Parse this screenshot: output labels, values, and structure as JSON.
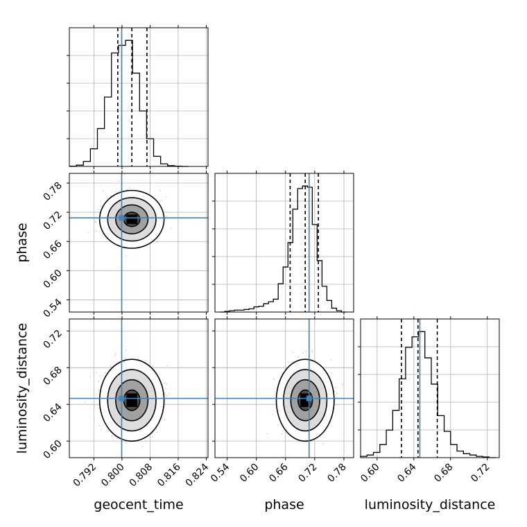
{
  "chart_data": {
    "type": "corner",
    "parameters": [
      "geocent_time",
      "phase",
      "luminosity_distance"
    ],
    "axis_labels": {
      "geocent_time": "geocent_time",
      "phase": "phase",
      "luminosity_distance": "luminosity_distance"
    },
    "ranges": {
      "geocent_time": [
        0.785,
        0.8245
      ],
      "phase": [
        0.515,
        0.8
      ],
      "luminosity_distance": [
        0.582,
        0.733
      ]
    },
    "ticks": {
      "geocent_time": [
        0.792,
        0.8,
        0.808,
        0.816,
        0.824
      ],
      "phase": [
        0.54,
        0.6,
        0.66,
        0.72,
        0.78
      ],
      "luminosity_distance": [
        0.6,
        0.64,
        0.68,
        0.72
      ]
    },
    "tick_labels": {
      "geocent_time": [
        "0.792",
        "0.800",
        "0.808",
        "0.816",
        "0.824"
      ],
      "phase": [
        "0.54",
        "0.60",
        "0.66",
        "0.72",
        "0.78"
      ],
      "luminosity_distance": [
        "0.60",
        "0.64",
        "0.68",
        "0.72"
      ]
    },
    "truths": {
      "geocent_time": 0.7999,
      "phase": 0.7085,
      "luminosity_distance": 0.6465
    },
    "truth_color": "#4682b4",
    "line_color": "#000000",
    "grid": true,
    "histograms": {
      "geocent_time": {
        "edges": [
          0.785,
          0.787,
          0.789,
          0.791,
          0.793,
          0.795,
          0.797,
          0.799,
          0.801,
          0.803,
          0.805,
          0.807,
          0.809,
          0.811,
          0.813,
          0.815,
          0.817,
          0.819
        ],
        "counts": [
          0.002,
          0.01,
          0.04,
          0.14,
          0.3,
          0.55,
          0.9,
          0.96,
          1.0,
          0.74,
          0.44,
          0.22,
          0.08,
          0.02,
          0.006,
          0.002,
          0.0
        ],
        "quantiles": [
          0.7988,
          0.8028,
          0.8071
        ]
      },
      "phase": {
        "edges": [
          0.525,
          0.535,
          0.545,
          0.555,
          0.565,
          0.575,
          0.585,
          0.595,
          0.605,
          0.615,
          0.625,
          0.635,
          0.645,
          0.655,
          0.665,
          0.675,
          0.685,
          0.695,
          0.705,
          0.715,
          0.725,
          0.735,
          0.745,
          0.755,
          0.765,
          0.775,
          0.785
        ],
        "counts": [
          0.0,
          0.005,
          0.01,
          0.015,
          0.015,
          0.02,
          0.025,
          0.04,
          0.045,
          0.065,
          0.08,
          0.1,
          0.22,
          0.35,
          0.54,
          0.8,
          0.96,
          0.98,
          0.97,
          0.68,
          0.4,
          0.2,
          0.09,
          0.03,
          0.01,
          0.0
        ],
        "quantiles": [
          0.6695,
          0.7005,
          0.7275
        ]
      },
      "luminosity_distance": {
        "edges": [
          0.582,
          0.589,
          0.596,
          0.603,
          0.61,
          0.617,
          0.624,
          0.631,
          0.638,
          0.645,
          0.652,
          0.659,
          0.666,
          0.673,
          0.68,
          0.687,
          0.694,
          0.701,
          0.708,
          0.715,
          0.722,
          0.729
        ],
        "counts": [
          0.01,
          0.02,
          0.04,
          0.1,
          0.21,
          0.36,
          0.6,
          0.84,
          0.92,
          0.96,
          0.76,
          0.56,
          0.32,
          0.2,
          0.1,
          0.05,
          0.03,
          0.02,
          0.01,
          0.005,
          0.0
        ],
        "quantiles": [
          0.6265,
          0.6445,
          0.6655
        ]
      }
    },
    "joint_2d": [
      {
        "x": "geocent_time",
        "y": "phase",
        "center": [
          0.8028,
          0.7055
        ],
        "sigma": [
          0.0034,
          0.022
        ],
        "contour_sigmas": [
          0.5,
          1.0,
          1.5,
          2.0
        ]
      },
      {
        "x": "geocent_time",
        "y": "luminosity_distance",
        "center": [
          0.8028,
          0.6445
        ],
        "sigma": [
          0.0034,
          0.0165
        ],
        "contour_sigmas": [
          0.5,
          1.0,
          1.5,
          2.0
        ]
      },
      {
        "x": "phase",
        "y": "luminosity_distance",
        "center": [
          0.7005,
          0.6445
        ],
        "sigma": [
          0.022,
          0.0165
        ],
        "contour_sigmas": [
          0.5,
          1.0,
          1.5,
          2.0
        ]
      }
    ]
  }
}
